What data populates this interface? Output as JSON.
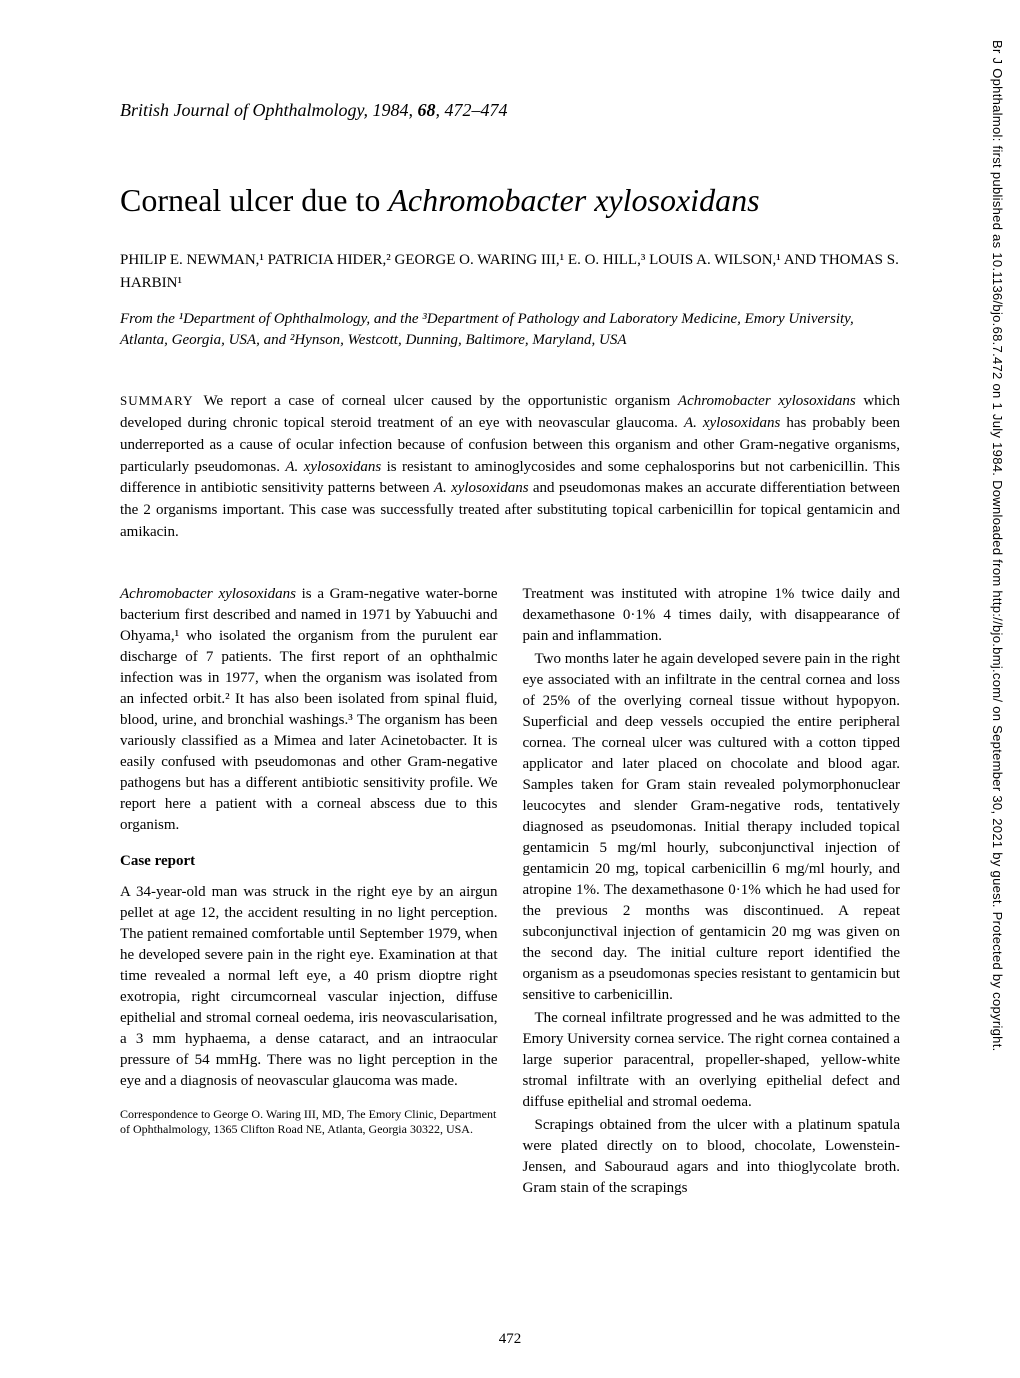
{
  "journal": {
    "name": "British Journal of Ophthalmology",
    "year": "1984",
    "volume": "68",
    "pages": "472–474"
  },
  "article": {
    "title_plain": "Corneal ulcer due to ",
    "title_italic": "Achromobacter xylosoxidans",
    "authors": "PHILIP E. NEWMAN,¹ PATRICIA HIDER,² GEORGE O. WARING III,¹ E. O. HILL,³ LOUIS A. WILSON,¹ AND THOMAS S. HARBIN¹",
    "affiliations": "From the ¹Department of Ophthalmology, and the ³Department of Pathology and Laboratory Medicine, Emory University, Atlanta, Georgia, USA, and ²Hynson, Westcott, Dunning, Baltimore, Maryland, USA"
  },
  "summary": {
    "label": "SUMMARY",
    "text_pre": "We report a case of corneal ulcer caused by the opportunistic organism ",
    "org1": "Achromobacter xylosoxidans",
    "text_mid1": " which developed during chronic topical steroid treatment of an eye with neovascular glaucoma. ",
    "org2": "A. xylosoxidans",
    "text_mid2": " has probably been underreported as a cause of ocular infection because of confusion between this organism and other Gram-negative organisms, particularly pseudomonas. ",
    "org3": "A. xylosoxidans",
    "text_mid3": " is resistant to aminoglycosides and some cephalosporins but not carbenicillin. This difference in antibiotic sensitivity patterns between ",
    "org4": "A. xylosoxidans",
    "text_end": " and pseudomonas makes an accurate differentiation between the 2 organisms important. This case was successfully treated after substituting topical carbenicillin for topical gentamicin and amikacin."
  },
  "left_column": {
    "intro_pre": "Achromobacter xylosoxidans",
    "intro_text": " is a Gram-negative water-borne bacterium first described and named in 1971 by Yabuuchi and Ohyama,¹ who isolated the organism from the purulent ear discharge of 7 patients. The first report of an ophthalmic infection was in 1977, when the organism was isolated from an infected orbit.² It has also been isolated from spinal fluid, blood, urine, and bronchial washings.³ The organism has been variously classified as a Mimea and later Acinetobacter. It is easily confused with pseudomonas and other Gram-negative pathogens but has a different antibiotic sensitivity profile. We report here a patient with a corneal abscess due to this organism.",
    "case_heading": "Case report",
    "case_text": "A 34-year-old man was struck in the right eye by an airgun pellet at age 12, the accident resulting in no light perception. The patient remained comfortable until September 1979, when he developed severe pain in the right eye. Examination at that time revealed a normal left eye, a 40 prism dioptre right exotropia, right circumcorneal vascular injection, diffuse epithelial and stromal corneal oedema, iris neovascularisation, a 3 mm hyphaema, a dense cataract, and an intraocular pressure of 54 mmHg. There was no light perception in the eye and a diagnosis of neovascular glaucoma was made.",
    "correspondence": "Correspondence to George O. Waring III, MD, The Emory Clinic, Department of Ophthalmology, 1365 Clifton Road NE, Atlanta, Georgia 30322, USA."
  },
  "right_column": {
    "p1": "Treatment was instituted with atropine 1% twice daily and dexamethasone 0·1% 4 times daily, with disappearance of pain and inflammation.",
    "p2": "Two months later he again developed severe pain in the right eye associated with an infiltrate in the central cornea and loss of 25% of the overlying corneal tissue without hypopyon. Superficial and deep vessels occupied the entire peripheral cornea. The corneal ulcer was cultured with a cotton tipped applicator and later placed on chocolate and blood agar. Samples taken for Gram stain revealed polymorphonuclear leucocytes and slender Gram-negative rods, tentatively diagnosed as pseudomonas. Initial therapy included topical gentamicin 5 mg/ml hourly, subconjunctival injection of gentamicin 20 mg, topical carbenicillin 6 mg/ml hourly, and atropine 1%. The dexamethasone 0·1% which he had used for the previous 2 months was discontinued. A repeat subconjunctival injection of gentamicin 20 mg was given on the second day. The initial culture report identified the organism as a pseudomonas species resistant to gentamicin but sensitive to carbenicillin.",
    "p3": "The corneal infiltrate progressed and he was admitted to the Emory University cornea service. The right cornea contained a large superior paracentral, propeller-shaped, yellow-white stromal infiltrate with an overlying epithelial defect and diffuse epithelial and stromal oedema.",
    "p4": "Scrapings obtained from the ulcer with a platinum spatula were plated directly on to blood, chocolate, Lowenstein-Jensen, and Sabouraud agars and into thioglycolate broth. Gram stain of the scrapings"
  },
  "page_number": "472",
  "sidebar": "Br J Ophthalmol: first published as 10.1136/bjo.68.7.472 on 1 July 1984. Downloaded from http://bjo.bmj.com/ on September 30, 2021 by guest. Protected by copyright."
}
